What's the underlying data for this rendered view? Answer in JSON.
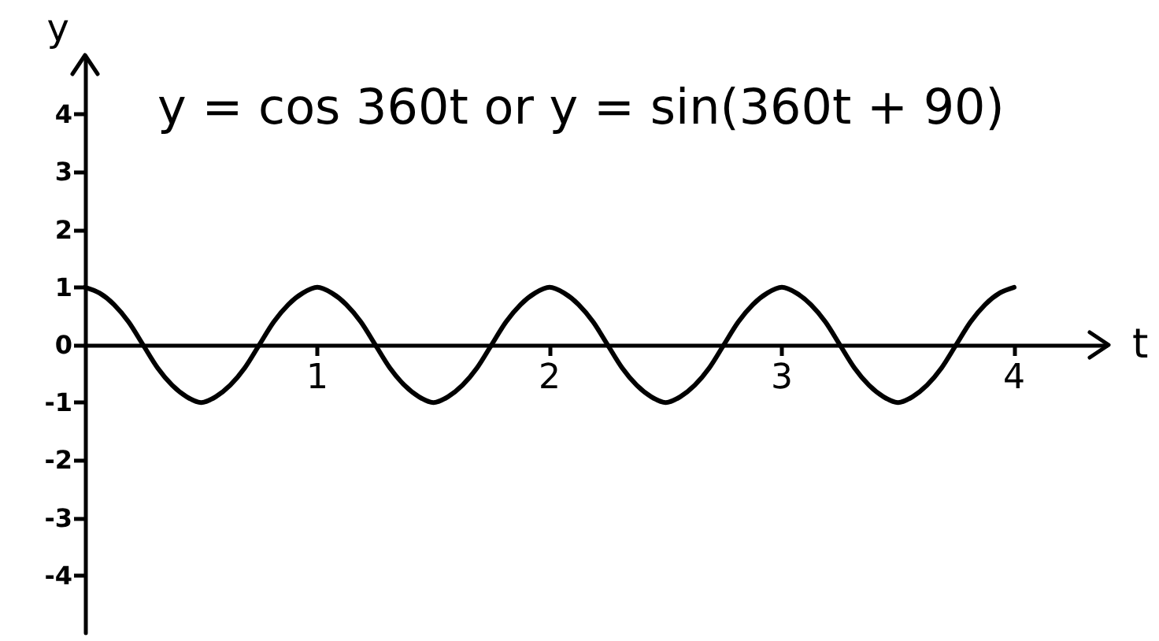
{
  "chart_data": {
    "type": "line",
    "title": "y = cos 360t or y = sin(360t + 90)",
    "xlabel": "t",
    "ylabel": "y",
    "x": [
      0,
      0.0625,
      0.125,
      0.1875,
      0.25,
      0.3125,
      0.375,
      0.4375,
      0.5,
      0.5625,
      0.625,
      0.6875,
      0.75,
      0.8125,
      0.875,
      0.9375,
      1,
      1.0625,
      1.125,
      1.1875,
      1.25,
      1.3125,
      1.375,
      1.4375,
      1.5,
      1.5625,
      1.625,
      1.6875,
      1.75,
      1.8125,
      1.875,
      1.9375,
      2,
      2.0625,
      2.125,
      2.1875,
      2.25,
      2.3125,
      2.375,
      2.4375,
      2.5,
      2.5625,
      2.625,
      2.6875,
      2.75,
      2.8125,
      2.875,
      2.9375,
      3,
      3.0625,
      3.125,
      3.1875,
      3.25,
      3.3125,
      3.375,
      3.4375,
      3.5,
      3.5625,
      3.625,
      3.6875,
      3.75,
      3.8125,
      3.875,
      3.9375,
      4
    ],
    "values": [
      1,
      0.9,
      0.7,
      0.4,
      0,
      -0.4,
      -0.7,
      -0.9,
      -1,
      -0.9,
      -0.7,
      -0.4,
      0,
      0.4,
      0.7,
      0.9,
      1,
      0.9,
      0.7,
      0.4,
      0,
      -0.4,
      -0.7,
      -0.9,
      -1,
      -0.9,
      -0.7,
      -0.4,
      0,
      0.4,
      0.7,
      0.9,
      1,
      0.9,
      0.7,
      0.4,
      0,
      -0.4,
      -0.7,
      -0.9,
      -1,
      -0.9,
      -0.7,
      -0.4,
      0,
      0.4,
      0.7,
      0.9,
      1,
      0.9,
      0.7,
      0.4,
      0,
      -0.4,
      -0.7,
      -0.9,
      -1,
      -0.9,
      -0.7,
      -0.4,
      0,
      0.4,
      0.7,
      0.9,
      1
    ],
    "color": "#000000",
    "xlim": [
      0,
      4.4
    ],
    "xticks": [
      1,
      2,
      3,
      4
    ],
    "ylim": [
      -5,
      5
    ],
    "yticks": [
      -4,
      -3,
      -2,
      -1,
      0,
      1,
      2,
      3,
      4
    ],
    "marker": "none",
    "line_style": "solid"
  }
}
